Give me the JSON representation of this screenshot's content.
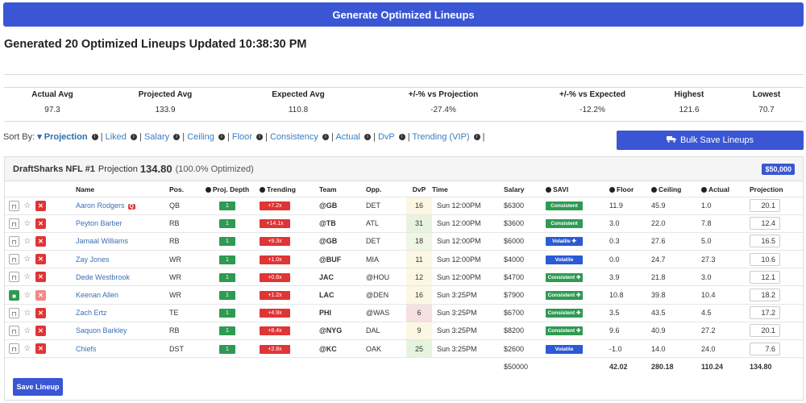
{
  "generate_button": "Generate Optimized Lineups",
  "generated_title": "Generated 20 Optimized Lineups Updated 10:38:30 PM",
  "stats": [
    {
      "label": "Actual Avg",
      "value": "97.3"
    },
    {
      "label": "Projected Avg",
      "value": "133.9"
    },
    {
      "label": "Expected Avg",
      "value": "110.8"
    },
    {
      "label": "+/-% vs Projection",
      "value": "-27.4%"
    },
    {
      "label": "+/-% vs Expected",
      "value": "-12.2%"
    },
    {
      "label": "Highest",
      "value": "121.6"
    },
    {
      "label": "Lowest",
      "value": "70.7"
    }
  ],
  "sort": {
    "prefix": "Sort By:",
    "active": "Projection",
    "options": [
      "Liked",
      "Salary",
      "Ceiling",
      "Floor",
      "Consistency",
      "Actual",
      "DvP",
      "Trending (VIP)"
    ],
    "separator": "|"
  },
  "bulk_button": "Bulk Save Lineups",
  "lineup": {
    "title": "DraftSharks NFL #1",
    "projection_label": "Projection",
    "projection_value": "134.80",
    "optimized": "(100.0% Optimized)",
    "amount_badge": "$50,000",
    "headers": [
      "Name",
      "Pos.",
      "Proj. Depth",
      "Trending",
      "Team",
      "Opp.",
      "DvP",
      "Time",
      "Salary",
      "SAVI",
      "Floor",
      "Ceiling",
      "Actual",
      "Projection"
    ],
    "rows": [
      {
        "name": "Aaron Rodgers",
        "badge": "Q",
        "pos": "QB",
        "depth": "1",
        "trend": "+7.2x",
        "team": "@GB",
        "opp": "DET",
        "dvp": "16",
        "dvp_color": "#fcf7e2",
        "time": "Sun 12:00PM",
        "salary": "$6300",
        "savi": "Consistent",
        "savi_color": "#2e9a52",
        "floor": "11.9",
        "ceiling": "45.9",
        "actual": "1.0",
        "projection": "20.1",
        "locked": false
      },
      {
        "name": "Peyton Barber",
        "badge": "",
        "pos": "RB",
        "depth": "1",
        "trend": "+14.1x",
        "team": "@TB",
        "opp": "ATL",
        "dvp": "31",
        "dvp_color": "#e6f4df",
        "time": "Sun 12:00PM",
        "salary": "$3600",
        "savi": "Consistent",
        "savi_color": "#2e9a52",
        "floor": "3.0",
        "ceiling": "22.0",
        "actual": "7.8",
        "projection": "12.4",
        "locked": false
      },
      {
        "name": "Jamaal Williams",
        "badge": "",
        "pos": "RB",
        "depth": "1",
        "trend": "+9.3x",
        "team": "@GB",
        "opp": "DET",
        "dvp": "18",
        "dvp_color": "#eef6e4",
        "time": "Sun 12:00PM",
        "salary": "$6000",
        "savi": "Volatile ✚",
        "savi_color": "#2b5ad6",
        "floor": "0.3",
        "ceiling": "27.6",
        "actual": "5.0",
        "projection": "16.5",
        "locked": false
      },
      {
        "name": "Zay Jones",
        "badge": "",
        "pos": "WR",
        "depth": "1",
        "trend": "+1.0x",
        "team": "@BUF",
        "opp": "MIA",
        "dvp": "11",
        "dvp_color": "#fcf7e2",
        "time": "Sun 12:00PM",
        "salary": "$4000",
        "savi": "Volatile",
        "savi_color": "#2b5ad6",
        "floor": "0.0",
        "ceiling": "24.7",
        "actual": "27.3",
        "projection": "10.6",
        "locked": false
      },
      {
        "name": "Dede Westbrook",
        "badge": "",
        "pos": "WR",
        "depth": "1",
        "trend": "+0.6x",
        "team": "JAC",
        "opp": "@HOU",
        "dvp": "12",
        "dvp_color": "#fcf7e2",
        "time": "Sun 12:00PM",
        "salary": "$4700",
        "savi": "Consistent ✚",
        "savi_color": "#2e9a52",
        "floor": "3.9",
        "ceiling": "21.8",
        "actual": "3.0",
        "projection": "12.1",
        "locked": false
      },
      {
        "name": "Keenan Allen",
        "badge": "",
        "pos": "WR",
        "depth": "1",
        "trend": "+1.2x",
        "team": "LAC",
        "opp": "@DEN",
        "dvp": "16",
        "dvp_color": "#fcf7e2",
        "time": "Sun 3:25PM",
        "salary": "$7900",
        "savi": "Consistent ✚",
        "savi_color": "#2e9a52",
        "floor": "10.8",
        "ceiling": "39.8",
        "actual": "10.4",
        "projection": "18.2",
        "locked": true
      },
      {
        "name": "Zach Ertz",
        "badge": "",
        "pos": "TE",
        "depth": "1",
        "trend": "+4.9x",
        "team": "PHI",
        "opp": "@WAS",
        "dvp": "6",
        "dvp_color": "#f7e0e0",
        "time": "Sun 3:25PM",
        "salary": "$6700",
        "savi": "Consistent ✚",
        "savi_color": "#2e9a52",
        "floor": "3.5",
        "ceiling": "43.5",
        "actual": "4.5",
        "projection": "17.2",
        "locked": false
      },
      {
        "name": "Saquon Barkley",
        "badge": "",
        "pos": "RB",
        "depth": "1",
        "trend": "+8.4x",
        "team": "@NYG",
        "opp": "DAL",
        "dvp": "9",
        "dvp_color": "#fcf7e2",
        "time": "Sun 3:25PM",
        "salary": "$8200",
        "savi": "Consistent ✚",
        "savi_color": "#2e9a52",
        "floor": "9.6",
        "ceiling": "40.9",
        "actual": "27.2",
        "projection": "20.1",
        "locked": false
      },
      {
        "name": "Chiefs",
        "badge": "",
        "pos": "DST",
        "depth": "1",
        "trend": "+2.8x",
        "team": "@KC",
        "opp": "OAK",
        "dvp": "25",
        "dvp_color": "#e6f4df",
        "time": "Sun 3:25PM",
        "salary": "$2600",
        "savi": "Volatile",
        "savi_color": "#2b5ad6",
        "floor": "-1.0",
        "ceiling": "14.0",
        "actual": "24.0",
        "projection": "7.6",
        "locked": false
      }
    ],
    "totals": {
      "salary": "$50000",
      "floor": "42.02",
      "ceiling": "280.18",
      "actual": "110.24",
      "projection": "134.80"
    },
    "save_button": "Save Lineup"
  }
}
